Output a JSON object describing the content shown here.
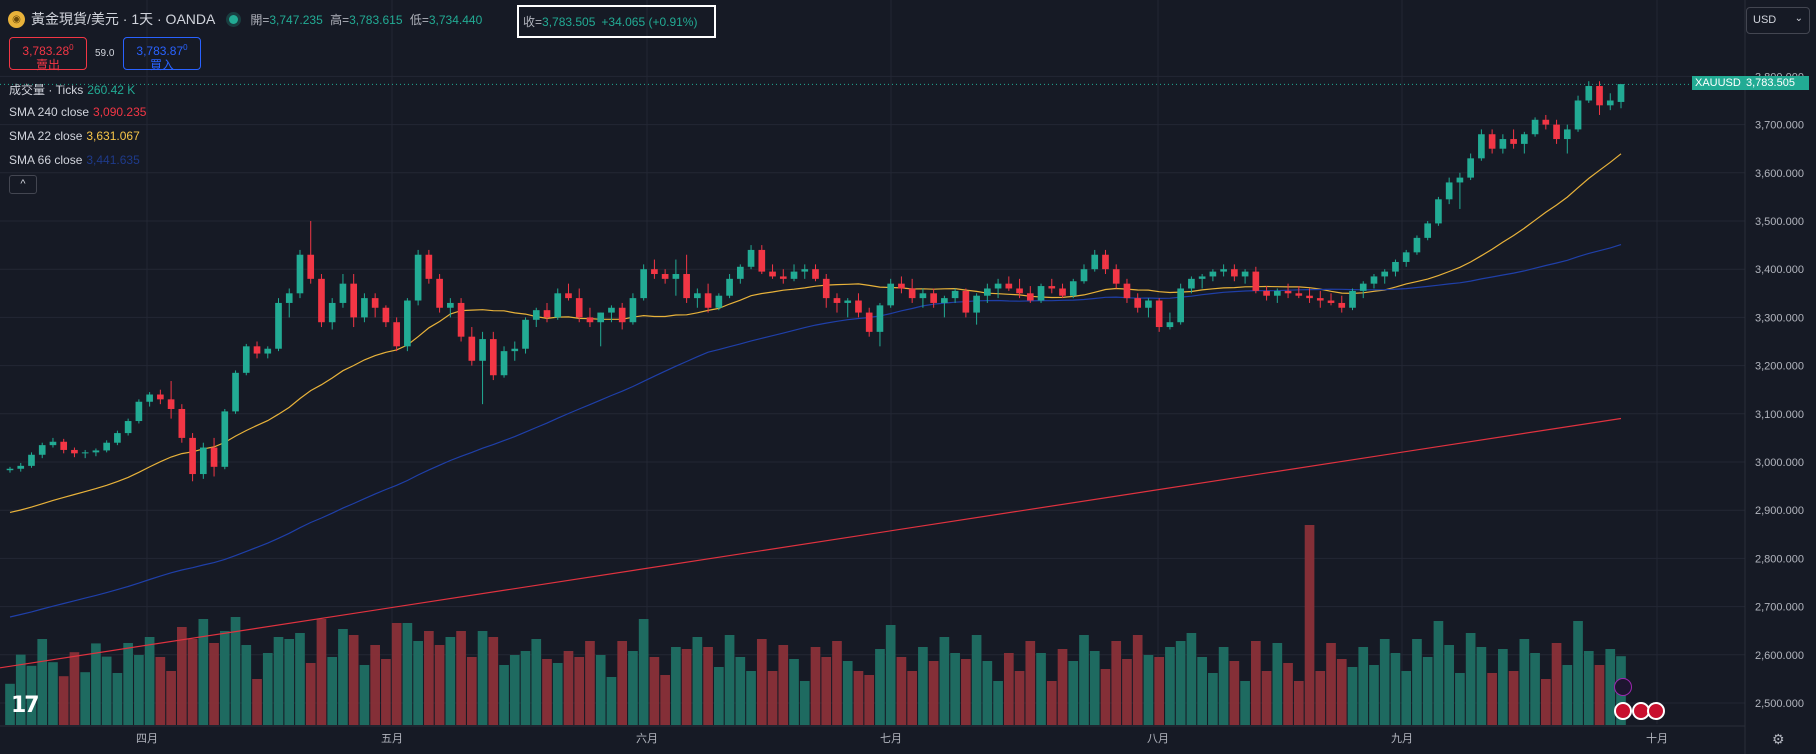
{
  "header": {
    "symbol_title": "黃金現貨/美元 · 1天 · OANDA",
    "open_label": "開=",
    "open_value": "3,747.235",
    "high_label": "高=",
    "high_value": "3,783.615",
    "low_label": "低=",
    "low_value": "3,734.440",
    "close_label": "收=",
    "close_value": "3,783.505",
    "change_value": "+34.065 (+0.91%)"
  },
  "trade": {
    "sell_price": "3,783.28",
    "sell_price_small": "0",
    "sell_label": "賣出",
    "spread": "59.0",
    "buy_price": "3,783.87",
    "buy_price_small": "0",
    "buy_label": "買入"
  },
  "legend": [
    {
      "label": "成交量 · Ticks",
      "value": "260.42 K",
      "color": "#22ab94"
    },
    {
      "label": "SMA 240 close",
      "value": "3,090.235",
      "color": "#f23645"
    },
    {
      "label": "SMA 22 close",
      "value": "3,631.067",
      "color": "#f7c548"
    },
    {
      "label": "SMA 66 close",
      "value": "3,441.635",
      "color": "#1e3a8a"
    }
  ],
  "collapse_glyph": "^",
  "currency": {
    "value": "USD"
  },
  "price_label": {
    "symbol": "XAUUSD",
    "value": "3,783.505"
  },
  "tv_logo": "17",
  "colors": {
    "up": "#22ab94",
    "down": "#f23645",
    "sma22": "#e8b23a",
    "sma66": "#1f3fa8",
    "sma240": "#e0323f",
    "background": "#161a25",
    "grid": "#232734"
  },
  "chart_data": {
    "type": "candlestick",
    "price_axis": {
      "ticks": [
        "2,500.000",
        "2,600.000",
        "2,700.000",
        "2,800.000",
        "2,900.000",
        "3,000.000",
        "3,100.000",
        "3,200.000",
        "3,300.000",
        "3,400.000",
        "3,500.000",
        "3,600.000",
        "3,700.000",
        "3,800.000"
      ],
      "ylim": [
        2460,
        3820
      ]
    },
    "time_axis": {
      "ticks": [
        "四月",
        "五月",
        "六月",
        "七月",
        "八月",
        "九月",
        "十月"
      ]
    },
    "candles_ohlc": [
      [
        2983,
        2990,
        2978,
        2986
      ],
      [
        2986,
        2998,
        2980,
        2992
      ],
      [
        2992,
        3020,
        2988,
        3015
      ],
      [
        3015,
        3040,
        3008,
        3035
      ],
      [
        3035,
        3050,
        3030,
        3042
      ],
      [
        3042,
        3048,
        3018,
        3025
      ],
      [
        3025,
        3030,
        3010,
        3018
      ],
      [
        3018,
        3025,
        3008,
        3020
      ],
      [
        3020,
        3028,
        3012,
        3024
      ],
      [
        3024,
        3045,
        3020,
        3040
      ],
      [
        3040,
        3065,
        3035,
        3060
      ],
      [
        3060,
        3090,
        3055,
        3085
      ],
      [
        3085,
        3130,
        3080,
        3125
      ],
      [
        3125,
        3145,
        3115,
        3140
      ],
      [
        3140,
        3150,
        3120,
        3130
      ],
      [
        3130,
        3168,
        3090,
        3110
      ],
      [
        3110,
        3120,
        3040,
        3050
      ],
      [
        3050,
        3060,
        2960,
        2975
      ],
      [
        2975,
        3040,
        2965,
        3030
      ],
      [
        3030,
        3050,
        2970,
        2990
      ],
      [
        2990,
        3110,
        2985,
        3105
      ],
      [
        3105,
        3190,
        3100,
        3185
      ],
      [
        3185,
        3245,
        3180,
        3240
      ],
      [
        3240,
        3250,
        3215,
        3225
      ],
      [
        3225,
        3240,
        3215,
        3235
      ],
      [
        3235,
        3340,
        3230,
        3330
      ],
      [
        3330,
        3360,
        3300,
        3350
      ],
      [
        3350,
        3440,
        3340,
        3430
      ],
      [
        3430,
        3500,
        3370,
        3380
      ],
      [
        3380,
        3390,
        3280,
        3290
      ],
      [
        3290,
        3340,
        3275,
        3330
      ],
      [
        3330,
        3390,
        3320,
        3370
      ],
      [
        3370,
        3390,
        3280,
        3300
      ],
      [
        3300,
        3350,
        3290,
        3340
      ],
      [
        3340,
        3350,
        3300,
        3320
      ],
      [
        3320,
        3325,
        3280,
        3290
      ],
      [
        3290,
        3300,
        3230,
        3240
      ],
      [
        3240,
        3340,
        3230,
        3335
      ],
      [
        3335,
        3440,
        3325,
        3430
      ],
      [
        3430,
        3440,
        3370,
        3380
      ],
      [
        3380,
        3390,
        3310,
        3320
      ],
      [
        3320,
        3340,
        3300,
        3330
      ],
      [
        3330,
        3340,
        3250,
        3260
      ],
      [
        3260,
        3280,
        3200,
        3210
      ],
      [
        3210,
        3270,
        3120,
        3255
      ],
      [
        3255,
        3270,
        3170,
        3180
      ],
      [
        3180,
        3240,
        3175,
        3230
      ],
      [
        3230,
        3250,
        3210,
        3235
      ],
      [
        3235,
        3300,
        3225,
        3295
      ],
      [
        3295,
        3320,
        3280,
        3315
      ],
      [
        3315,
        3330,
        3290,
        3300
      ],
      [
        3300,
        3360,
        3295,
        3350
      ],
      [
        3350,
        3370,
        3335,
        3340
      ],
      [
        3340,
        3360,
        3290,
        3300
      ],
      [
        3300,
        3320,
        3280,
        3290
      ],
      [
        3290,
        3310,
        3240,
        3310
      ],
      [
        3310,
        3325,
        3290,
        3320
      ],
      [
        3320,
        3330,
        3275,
        3290
      ],
      [
        3290,
        3350,
        3285,
        3340
      ],
      [
        3340,
        3410,
        3335,
        3400
      ],
      [
        3400,
        3420,
        3380,
        3390
      ],
      [
        3390,
        3400,
        3370,
        3380
      ],
      [
        3380,
        3420,
        3345,
        3390
      ],
      [
        3390,
        3430,
        3330,
        3340
      ],
      [
        3340,
        3360,
        3320,
        3350
      ],
      [
        3350,
        3370,
        3310,
        3320
      ],
      [
        3320,
        3350,
        3315,
        3345
      ],
      [
        3345,
        3390,
        3340,
        3380
      ],
      [
        3380,
        3410,
        3370,
        3405
      ],
      [
        3405,
        3450,
        3400,
        3440
      ],
      [
        3440,
        3450,
        3390,
        3395
      ],
      [
        3395,
        3410,
        3380,
        3385
      ],
      [
        3385,
        3400,
        3370,
        3380
      ],
      [
        3380,
        3410,
        3375,
        3395
      ],
      [
        3395,
        3410,
        3380,
        3400
      ],
      [
        3400,
        3410,
        3375,
        3380
      ],
      [
        3380,
        3390,
        3320,
        3340
      ],
      [
        3340,
        3350,
        3310,
        3330
      ],
      [
        3330,
        3340,
        3300,
        3335
      ],
      [
        3335,
        3350,
        3300,
        3310
      ],
      [
        3310,
        3320,
        3260,
        3270
      ],
      [
        3270,
        3330,
        3240,
        3325
      ],
      [
        3325,
        3380,
        3320,
        3370
      ],
      [
        3370,
        3385,
        3350,
        3360
      ],
      [
        3360,
        3380,
        3330,
        3340
      ],
      [
        3340,
        3360,
        3320,
        3350
      ],
      [
        3350,
        3360,
        3320,
        3330
      ],
      [
        3330,
        3345,
        3300,
        3340
      ],
      [
        3340,
        3360,
        3330,
        3355
      ],
      [
        3355,
        3360,
        3300,
        3310
      ],
      [
        3310,
        3350,
        3285,
        3345
      ],
      [
        3345,
        3370,
        3330,
        3360
      ],
      [
        3360,
        3380,
        3340,
        3370
      ],
      [
        3370,
        3385,
        3355,
        3360
      ],
      [
        3360,
        3380,
        3340,
        3350
      ],
      [
        3350,
        3365,
        3330,
        3335
      ],
      [
        3335,
        3370,
        3330,
        3365
      ],
      [
        3365,
        3380,
        3350,
        3360
      ],
      [
        3360,
        3370,
        3340,
        3345
      ],
      [
        3345,
        3380,
        3340,
        3375
      ],
      [
        3375,
        3410,
        3370,
        3400
      ],
      [
        3400,
        3440,
        3395,
        3430
      ],
      [
        3430,
        3440,
        3390,
        3400
      ],
      [
        3400,
        3410,
        3360,
        3370
      ],
      [
        3370,
        3380,
        3330,
        3340
      ],
      [
        3340,
        3350,
        3310,
        3320
      ],
      [
        3320,
        3340,
        3300,
        3335
      ],
      [
        3335,
        3340,
        3270,
        3280
      ],
      [
        3280,
        3310,
        3275,
        3290
      ],
      [
        3290,
        3370,
        3285,
        3360
      ],
      [
        3360,
        3385,
        3350,
        3380
      ],
      [
        3380,
        3390,
        3360,
        3385
      ],
      [
        3385,
        3400,
        3375,
        3395
      ],
      [
        3395,
        3410,
        3385,
        3400
      ],
      [
        3400,
        3410,
        3375,
        3385
      ],
      [
        3385,
        3400,
        3370,
        3395
      ],
      [
        3395,
        3405,
        3350,
        3355
      ],
      [
        3355,
        3365,
        3335,
        3345
      ],
      [
        3345,
        3360,
        3330,
        3355
      ],
      [
        3355,
        3370,
        3340,
        3350
      ],
      [
        3350,
        3365,
        3340,
        3345
      ],
      [
        3345,
        3360,
        3330,
        3340
      ],
      [
        3340,
        3355,
        3320,
        3335
      ],
      [
        3335,
        3350,
        3325,
        3330
      ],
      [
        3330,
        3345,
        3310,
        3320
      ],
      [
        3320,
        3360,
        3315,
        3355
      ],
      [
        3355,
        3375,
        3340,
        3370
      ],
      [
        3370,
        3390,
        3360,
        3385
      ],
      [
        3385,
        3400,
        3370,
        3395
      ],
      [
        3395,
        3420,
        3385,
        3415
      ],
      [
        3415,
        3440,
        3405,
        3435
      ],
      [
        3435,
        3470,
        3430,
        3465
      ],
      [
        3465,
        3500,
        3460,
        3495
      ],
      [
        3495,
        3550,
        3490,
        3545
      ],
      [
        3545,
        3590,
        3535,
        3580
      ],
      [
        3580,
        3600,
        3525,
        3590
      ],
      [
        3590,
        3640,
        3585,
        3630
      ],
      [
        3630,
        3690,
        3625,
        3680
      ],
      [
        3680,
        3690,
        3640,
        3650
      ],
      [
        3650,
        3680,
        3640,
        3670
      ],
      [
        3670,
        3690,
        3650,
        3660
      ],
      [
        3660,
        3685,
        3640,
        3680
      ],
      [
        3680,
        3715,
        3675,
        3710
      ],
      [
        3710,
        3720,
        3690,
        3700
      ],
      [
        3700,
        3710,
        3660,
        3670
      ],
      [
        3670,
        3700,
        3640,
        3690
      ],
      [
        3690,
        3760,
        3685,
        3750
      ],
      [
        3750,
        3790,
        3745,
        3780
      ],
      [
        3780,
        3790,
        3720,
        3740
      ],
      [
        3740,
        3765,
        3730,
        3750
      ],
      [
        3747,
        3784,
        3734,
        3784
      ]
    ],
    "sma22_end": 3631.067,
    "sma66_end": 3441.635,
    "sma240_end": 3090.235,
    "volume_last": "260.42 K"
  }
}
